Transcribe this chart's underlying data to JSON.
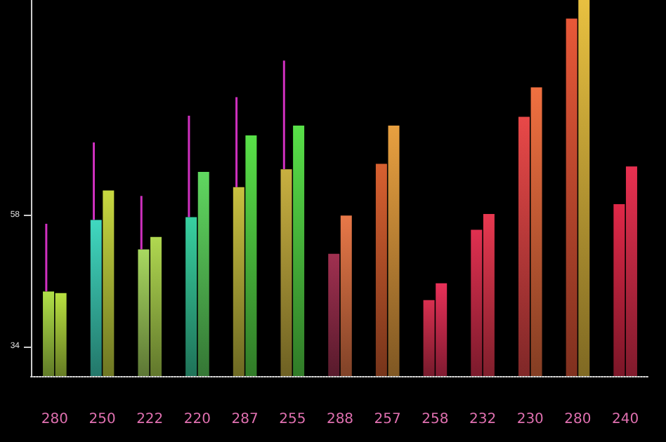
{
  "chart_data": {
    "type": "bar",
    "categories": [
      "280",
      "250",
      "222",
      "220",
      "287",
      "255",
      "288",
      "257",
      "258",
      "232",
      "230",
      "280",
      "240"
    ],
    "series": [
      {
        "colors": [
          "#b0e048",
          "#40d8c0",
          "#a8d860",
          "#38d0a0",
          "#c8c040",
          "#c8b040",
          "#a03050",
          "#d86030",
          "#d83050",
          "#e03050",
          "#e84848",
          "#e85838",
          "#e02848"
        ],
        "values": [
          44.1,
          57.2,
          51.8,
          57.7,
          63.2,
          66.5,
          51.0,
          67.5,
          42.5,
          55.4,
          76.1,
          94.1,
          60.1
        ],
        "errors": [
          [
            44.1,
            56.5
          ],
          [
            57.2,
            71.4
          ],
          [
            51.8,
            61.6
          ],
          [
            57.7,
            76.3
          ],
          [
            63.2,
            79.7
          ],
          [
            66.5,
            86.4
          ],
          null,
          null,
          null,
          null,
          null,
          null,
          null
        ]
      },
      {
        "colors": [
          "#b8e040",
          "#c8d840",
          "#b0d850",
          "#60d860",
          "#58e048",
          "#58e048",
          "#e87848",
          "#e8a040",
          "#e83058",
          "#e83850",
          "#f07040",
          "#e8c040",
          "#e83050"
        ],
        "values": [
          43.8,
          62.6,
          54.1,
          66.0,
          72.7,
          74.5,
          58.0,
          74.5,
          45.6,
          58.3,
          81.5,
          97.5,
          67.0
        ]
      }
    ],
    "ylim": [
      28.6,
      97.5
    ],
    "yticks": [
      34,
      58
    ],
    "grid": false
  }
}
